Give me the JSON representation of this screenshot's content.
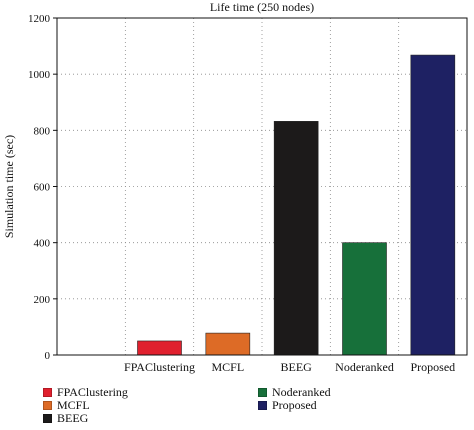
{
  "chart_data": {
    "type": "bar",
    "title": "Life time (250 nodes)",
    "xlabel": "",
    "ylabel": "Simulation time (sec)",
    "categories": [
      "FPAClustering",
      "MCFL",
      "BEEG",
      "Noderanked",
      "Proposed"
    ],
    "values": [
      50,
      78,
      832,
      400,
      1068
    ],
    "colors": [
      "#e0202e",
      "#dd6b26",
      "#1c1a1a",
      "#17703a",
      "#1e2163"
    ],
    "ylim": [
      0,
      1200
    ],
    "yticks": [
      0,
      200,
      400,
      600,
      800,
      1000,
      1200
    ],
    "grid": true,
    "grid_style": "dotted",
    "legend": [
      {
        "label": "FPAClustering",
        "color": "#e0202e"
      },
      {
        "label": "MCFL",
        "color": "#dd6b26"
      },
      {
        "label": "BEEG",
        "color": "#1c1a1a"
      },
      {
        "label": "Noderanked",
        "color": "#17703a"
      },
      {
        "label": "Proposed",
        "color": "#1e2163"
      }
    ],
    "legend_position": "bottom"
  }
}
